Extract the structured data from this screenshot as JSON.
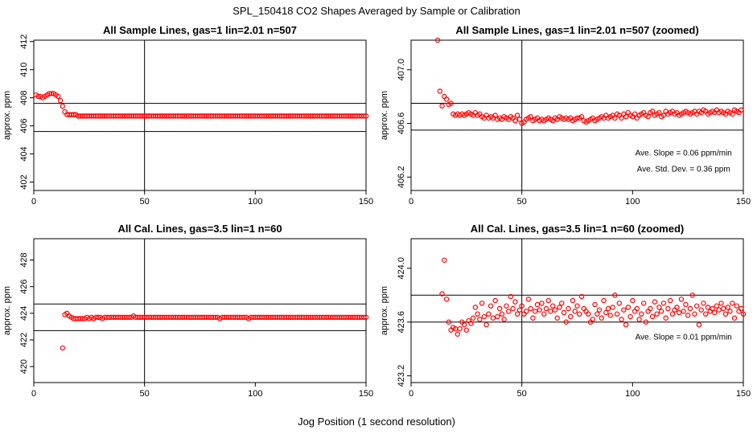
{
  "figure": {
    "title": "SPL_150418  CO2 Shapes Averaged by Sample or Calibration",
    "xlabel": "Jog Position (1 second resolution)"
  },
  "colors": {
    "points": "#ff0000",
    "lines": "#000000",
    "background": "#ffffff"
  },
  "chart_data": [
    {
      "type": "scatter",
      "title": "All Sample Lines, gas=1 lin=2.01 n=507",
      "ylabel": "approx. ppm",
      "xlim": [
        0,
        150
      ],
      "ylim": [
        401.4,
        412.1
      ],
      "xticks": [
        "0",
        "50",
        "100",
        "150"
      ],
      "yticks": [
        "402",
        "404",
        "406",
        "408",
        "410",
        "412"
      ],
      "hlines": [
        407.6,
        405.6
      ],
      "vline": 50,
      "series": [
        {
          "x_start": 1,
          "x_step": 1,
          "values": [
            408.2,
            408.1,
            408.1,
            408.0,
            408.1,
            408.2,
            408.3,
            408.3,
            408.3,
            408.2,
            408.1,
            407.8,
            407.4,
            407.0,
            406.8,
            406.8,
            406.8,
            406.8,
            406.8,
            406.7,
            406.7,
            406.7,
            406.7,
            406.7,
            406.7,
            406.7,
            406.7,
            406.7,
            406.7,
            406.7,
            406.7,
            406.7,
            406.7,
            406.7,
            406.7,
            406.7,
            406.7,
            406.7,
            406.7,
            406.7,
            406.7,
            406.7,
            406.7,
            406.7,
            406.7,
            406.7,
            406.7,
            406.7,
            406.7,
            406.7,
            406.7,
            406.7,
            406.7,
            406.7,
            406.7,
            406.7,
            406.7,
            406.7,
            406.7,
            406.7,
            406.7,
            406.7,
            406.7,
            406.7,
            406.7,
            406.7,
            406.7,
            406.7,
            406.7,
            406.7,
            406.7,
            406.7,
            406.7,
            406.7,
            406.7,
            406.7,
            406.7,
            406.7,
            406.7,
            406.7,
            406.7,
            406.7,
            406.7,
            406.7,
            406.7,
            406.7,
            406.7,
            406.7,
            406.7,
            406.7,
            406.7,
            406.7,
            406.7,
            406.7,
            406.7,
            406.7,
            406.7,
            406.7,
            406.7,
            406.7,
            406.7,
            406.7,
            406.7,
            406.7,
            406.7,
            406.7,
            406.7,
            406.7,
            406.7,
            406.7,
            406.7,
            406.7,
            406.7,
            406.7,
            406.7,
            406.7,
            406.7,
            406.7,
            406.7,
            406.7,
            406.7,
            406.7,
            406.7,
            406.7,
            406.7,
            406.7,
            406.7,
            406.7,
            406.7,
            406.7,
            406.7,
            406.7,
            406.7,
            406.7,
            406.7,
            406.7,
            406.7,
            406.7,
            406.7,
            406.7,
            406.7,
            406.7,
            406.7,
            406.7,
            406.7,
            406.7,
            406.7,
            406.7,
            406.7,
            406.7
          ]
        }
      ],
      "annotations": []
    },
    {
      "type": "scatter",
      "title": "All Sample Lines, gas=1 lin=2.01 n=507 (zoomed)",
      "ylabel": "approx. ppm",
      "xlim": [
        0,
        150
      ],
      "ylim": [
        406.1,
        407.22
      ],
      "xticks": [
        "0",
        "50",
        "100",
        "150"
      ],
      "yticks": [
        "406.2",
        "406.6",
        "407.0"
      ],
      "hlines": [
        406.75,
        406.55
      ],
      "vline": 50,
      "series": [
        {
          "x_start": 12,
          "x_step": 1,
          "values": [
            407.22,
            406.84,
            406.73,
            406.8,
            406.78,
            406.74,
            406.75,
            406.67,
            406.66,
            406.67,
            406.66,
            406.67,
            406.66,
            406.67,
            406.68,
            406.67,
            406.66,
            406.68,
            406.66,
            406.67,
            406.65,
            406.64,
            406.66,
            406.64,
            406.65,
            406.64,
            406.66,
            406.63,
            406.64,
            406.63,
            406.65,
            406.64,
            406.63,
            406.65,
            406.64,
            406.62,
            406.66,
            406.63,
            406.6,
            406.61,
            406.63,
            406.64,
            406.65,
            406.62,
            406.63,
            406.64,
            406.62,
            406.63,
            406.62,
            406.63,
            406.64,
            406.63,
            406.62,
            406.64,
            406.63,
            406.65,
            406.64,
            406.63,
            406.64,
            406.63,
            406.64,
            406.62,
            406.63,
            406.64,
            406.64,
            406.65,
            406.62,
            406.61,
            406.62,
            406.63,
            406.64,
            406.62,
            406.63,
            406.64,
            406.65,
            406.64,
            406.66,
            406.64,
            406.65,
            406.66,
            406.64,
            406.67,
            406.66,
            406.64,
            406.67,
            406.65,
            406.68,
            406.66,
            406.65,
            406.67,
            406.64,
            406.66,
            406.67,
            406.68,
            406.66,
            406.65,
            406.68,
            406.69,
            406.66,
            406.67,
            406.68,
            406.65,
            406.66,
            406.69,
            406.67,
            406.68,
            406.69,
            406.67,
            406.68,
            406.66,
            406.67,
            406.68,
            406.69,
            406.68,
            406.67,
            406.68,
            406.69,
            406.67,
            406.69,
            406.68,
            406.7,
            406.69,
            406.67,
            406.68,
            406.69,
            406.68,
            406.7,
            406.68,
            406.69,
            406.68,
            406.67,
            406.69,
            406.68,
            406.67,
            406.7,
            406.69,
            406.68,
            406.7
          ]
        }
      ],
      "annotations": [
        {
          "text": "Ave. Slope =  0.06  ppm/min",
          "x": 123,
          "y": 406.36
        },
        {
          "text": "Ave. Std. Dev. =  0.36  ppm",
          "x": 123,
          "y": 406.24
        }
      ]
    },
    {
      "type": "scatter",
      "title": "All Cal. Lines, gas=3.5 lin=1 n=60",
      "ylabel": "approx. ppm",
      "xlim": [
        0,
        150
      ],
      "ylim": [
        418.8,
        429.6
      ],
      "xticks": [
        "0",
        "50",
        "100",
        "150"
      ],
      "yticks": [
        "420",
        "422",
        "424",
        "426",
        "428"
      ],
      "hlines": [
        424.7,
        422.7
      ],
      "vline": 50,
      "series": [
        {
          "x_start": 13,
          "x_step": 1,
          "values": [
            421.4,
            423.9,
            424.0,
            423.8,
            423.7,
            423.6,
            423.6,
            423.6,
            423.6,
            423.6,
            423.6,
            423.7,
            423.6,
            423.7,
            423.6,
            423.7,
            423.7,
            423.7,
            423.6,
            423.7,
            423.7,
            423.7,
            423.7,
            423.7,
            423.7,
            423.7,
            423.7,
            423.7,
            423.7,
            423.7,
            423.7,
            423.7,
            423.8,
            423.7,
            423.7,
            423.7,
            423.7,
            423.7,
            423.7,
            423.7,
            423.7,
            423.7,
            423.7,
            423.7,
            423.7,
            423.7,
            423.7,
            423.7,
            423.7,
            423.7,
            423.7,
            423.7,
            423.7,
            423.7,
            423.7,
            423.7,
            423.7,
            423.7,
            423.7,
            423.7,
            423.7,
            423.7,
            423.7,
            423.7,
            423.7,
            423.7,
            423.7,
            423.7,
            423.7,
            423.7,
            423.7,
            423.6,
            423.7,
            423.7,
            423.7,
            423.7,
            423.7,
            423.7,
            423.7,
            423.7,
            423.7,
            423.7,
            423.7,
            423.7,
            423.6,
            423.7,
            423.7,
            423.7,
            423.7,
            423.7,
            423.7,
            423.7,
            423.7,
            423.7,
            423.7,
            423.7,
            423.7,
            423.7,
            423.7,
            423.7,
            423.7,
            423.7,
            423.7,
            423.7,
            423.7,
            423.7,
            423.7,
            423.7,
            423.7,
            423.7,
            423.7,
            423.7,
            423.7,
            423.7,
            423.7,
            423.7,
            423.7,
            423.7,
            423.7,
            423.7,
            423.7,
            423.7,
            423.7,
            423.7,
            423.7,
            423.7,
            423.7,
            423.7,
            423.7,
            423.7,
            423.7,
            423.7,
            423.7,
            423.7,
            423.7,
            423.7,
            423.7,
            423.7
          ]
        }
      ],
      "annotations": []
    },
    {
      "type": "scatter",
      "title": "All Cal. Lines, gas=3.5 lin=1 n=60 (zoomed)",
      "ylabel": "approx. ppm",
      "xlim": [
        0,
        150
      ],
      "ylim": [
        423.15,
        424.22
      ],
      "xticks": [
        "0",
        "50",
        "100",
        "150"
      ],
      "yticks": [
        "423.2",
        "423.6",
        "424.0"
      ],
      "hlines": [
        423.8,
        423.6
      ],
      "vline": 50,
      "series": [
        {
          "x_start": 14,
          "x_step": 1,
          "values": [
            423.81,
            424.06,
            423.77,
            423.6,
            423.54,
            423.56,
            423.55,
            423.51,
            423.55,
            423.6,
            423.58,
            423.54,
            423.61,
            423.59,
            423.63,
            423.71,
            423.66,
            423.62,
            423.74,
            423.64,
            423.58,
            423.66,
            423.72,
            423.63,
            423.76,
            423.64,
            423.7,
            423.66,
            423.62,
            423.72,
            423.68,
            423.79,
            423.7,
            423.75,
            423.66,
            423.69,
            423.72,
            423.66,
            423.68,
            423.77,
            423.7,
            423.63,
            423.68,
            423.73,
            423.69,
            423.74,
            423.66,
            423.7,
            423.76,
            423.68,
            423.72,
            423.69,
            423.63,
            423.71,
            423.74,
            423.67,
            423.6,
            423.7,
            423.64,
            423.76,
            423.68,
            423.72,
            423.66,
            423.79,
            423.7,
            423.68,
            423.66,
            423.6,
            423.62,
            423.73,
            423.66,
            423.69,
            423.63,
            423.76,
            423.67,
            423.7,
            423.65,
            423.71,
            423.8,
            423.66,
            423.74,
            423.62,
            423.69,
            423.58,
            423.71,
            423.64,
            423.76,
            423.68,
            423.7,
            423.62,
            423.66,
            423.74,
            423.6,
            423.68,
            423.7,
            423.64,
            423.75,
            423.66,
            423.71,
            423.68,
            423.74,
            423.63,
            423.7,
            423.76,
            423.66,
            423.69,
            423.71,
            423.67,
            423.77,
            423.68,
            423.73,
            423.65,
            423.7,
            423.8,
            423.66,
            423.72,
            423.58,
            423.69,
            423.74,
            423.66,
            423.71,
            423.68,
            423.7,
            423.67,
            423.72,
            423.69,
            423.74,
            423.7,
            423.66,
            423.71,
            423.68,
            423.74,
            423.63,
            423.72,
            423.68,
            423.7,
            423.66
          ]
        }
      ],
      "annotations": [
        {
          "text": "Ave. Slope =  0.01  ppm/min",
          "x": 123,
          "y": 423.47
        }
      ]
    }
  ]
}
